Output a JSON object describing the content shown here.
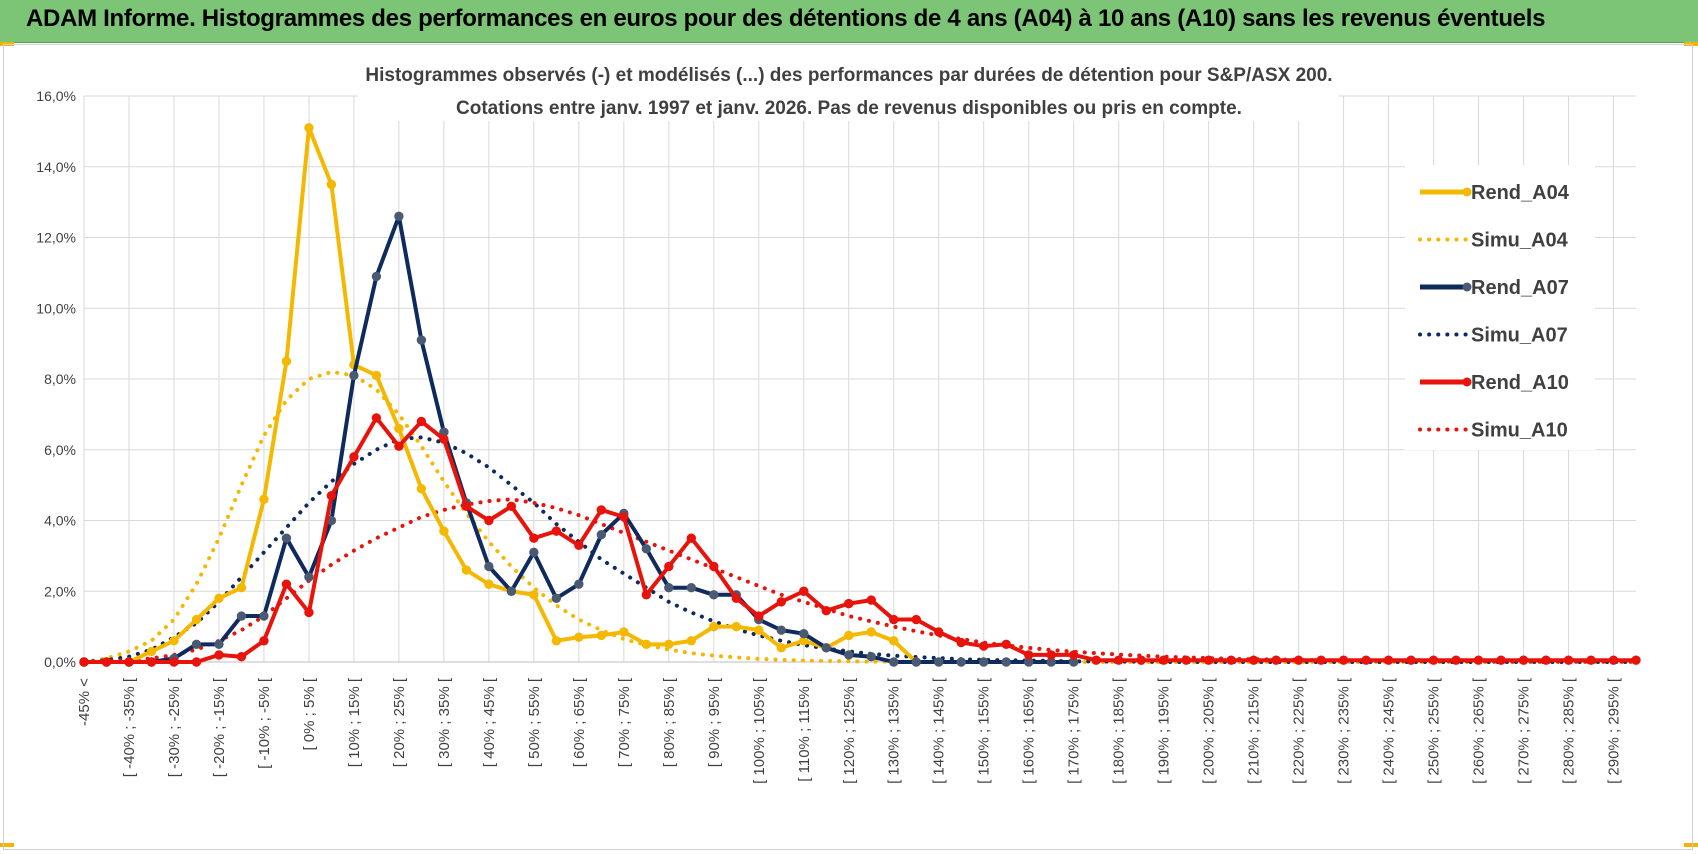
{
  "banner": {
    "title": "ADAM Informe. Histogrammes des performances en euros pour des détentions de 4 ans (A04) à 10 ans (A10) sans les revenus éventuels"
  },
  "colors": {
    "banner": "#7cc576",
    "a04": "#f5b800",
    "a07": "#0f2a5c",
    "a07_marker": "#4a5a72",
    "a10": "#e8130a",
    "grid": "#d9d9d9"
  },
  "chart_data": {
    "type": "line",
    "title": [
      "Histogrammes observés (-) et modélisés (...) des performances par durées de détention pour S&P/ASX 200.",
      "Cotations entre janv. 1997 et janv. 2026. Pas de revenus disponibles ou pris en compte."
    ],
    "xlabel": "",
    "ylabel": "",
    "ylim": [
      0,
      16
    ],
    "yticks": [
      "0,0%",
      "2,0%",
      "4,0%",
      "6,0%",
      "8,0%",
      "10,0%",
      "12,0%",
      "14,0%",
      "16,0%"
    ],
    "legend_position": "right",
    "categories": [
      "-45% <",
      "[ -45% ; -40% [",
      "[ -40% ; -35% [",
      "[ -35% ; -30% [",
      "[ -30% ; -25% [",
      "[ -25% ; -20% [",
      "[ -20% ; -15% [",
      "[ -15% ; -10% [",
      "[ -10% ; -5% [",
      "[ -5% ; 0% [",
      "[ 0% ; 5% [",
      "[ 5% ; 10% [",
      "[ 10% ; 15% [",
      "[ 15% ; 20% [",
      "[ 20% ; 25% [",
      "[ 25% ; 30% [",
      "[ 30% ; 35% [",
      "[ 35% ; 40% [",
      "[ 40% ; 45% [",
      "[ 45% ; 50% [",
      "[ 50% ; 55% [",
      "[ 55% ; 60% [",
      "[ 60% ; 65% [",
      "[ 65% ; 70% [",
      "[ 70% ; 75% [",
      "[ 75% ; 80% [",
      "[ 80% ; 85% [",
      "[ 85% ; 90% [",
      "[ 90% ; 95% [",
      "[ 95% ; 100% [",
      "[ 100% ; 105% [",
      "[ 105% ; 110% [",
      "[ 110% ; 115% [",
      "[ 115% ; 120% [",
      "[ 120% ; 125% [",
      "[ 125% ; 130% [",
      "[ 130% ; 135% [",
      "[ 135% ; 140% [",
      "[ 140% ; 145% [",
      "[ 145% ; 150% [",
      "[ 150% ; 155% [",
      "[ 155% ; 160% [",
      "[ 160% ; 165% [",
      "[ 165% ; 170% [",
      "[ 170% ; 175% [",
      "[ 175% ; 180% [",
      "[ 180% ; 185% [",
      "[ 185% ; 190% [",
      "[ 190% ; 195% [",
      "[ 195% ; 200% [",
      "[ 200% ; 205% [",
      "[ 205% ; 210% [",
      "[ 210% ; 215% [",
      "[ 215% ; 220% [",
      "[ 220% ; 225% [",
      "[ 225% ; 230% [",
      "[ 230% ; 235% [",
      "[ 235% ; 240% [",
      "[ 240% ; 245% [",
      "[ 245% ; 250% [",
      "[ 250% ; 255% [",
      "[ 255% ; 260% [",
      "[ 260% ; 265% [",
      "[ 265% ; 270% [",
      "[ 270% ; 275% [",
      "[ 275% ; 280% [",
      "[ 280% ; 285% [",
      "[ 285% ; 290% [",
      "[ 290% ; 295% [",
      "[ 295% ; 300% ["
    ],
    "visible_tick_labels": [
      "-45% <",
      "[ -40% ; -35% [",
      "[ -30% ; -25% [",
      "[ -20% ; -15% [",
      "[ -10% ; -5% [",
      "[ 0% ; 5% [",
      "[ 10% ; 15% [",
      "[ 20% ; 25% [",
      "[ 30% ; 35% [",
      "[ 40% ; 45% [",
      "[ 50% ; 55% [",
      "[ 60% ; 65% [",
      "[ 70% ; 75% [",
      "[ 80% ; 85% [",
      "[ 90% ; 95% [",
      "[ 100% ; 105% [",
      "[ 110% ; 115% [",
      "[ 120% ; 125% [",
      "[ 130% ; 135% [",
      "[ 140% ; 145% [",
      "[ 150% ; 155% [",
      "[ 160% ; 165% [",
      "[ 170% ; 175% [",
      "[ 180% ; 185% [",
      "[ 190% ; 195% [",
      "[ 200% ; 205% [",
      "[ 210% ; 215% [",
      "[ 220% ; 225% [",
      "[ 230% ; 235% [",
      "[ 240% ; 245% [",
      "[ 250% ; 255% [",
      "[ 260% ; 265% [",
      "[ 270% ; 275% [",
      "[ 280% ; 285% [",
      "[ 290% ; 295% ["
    ],
    "series": [
      {
        "name": "Rend_A04",
        "style": "solid",
        "color": "#f5b800",
        "marker": "#f5b800",
        "values": [
          0,
          0,
          0,
          0.3,
          0.6,
          1.2,
          1.8,
          2.1,
          4.6,
          8.5,
          15.1,
          13.5,
          8.4,
          8.1,
          6.6,
          4.9,
          3.7,
          2.6,
          2.2,
          2.0,
          1.9,
          0.6,
          0.7,
          0.75,
          0.85,
          0.5,
          0.5,
          0.6,
          1.0,
          1.0,
          0.9,
          0.4,
          0.6,
          0.4,
          0.75,
          0.85,
          0.6,
          0.0,
          null,
          null,
          null,
          null,
          null,
          null,
          null,
          null,
          null,
          null,
          null,
          null,
          null,
          null,
          null,
          null,
          null,
          null,
          null,
          null,
          null,
          null,
          null,
          null,
          null,
          null,
          null,
          null,
          null,
          null,
          null,
          null
        ]
      },
      {
        "name": "Simu_A04",
        "style": "dotted",
        "color": "#f5b800",
        "values": [
          0.0,
          0.1,
          0.3,
          0.6,
          1.2,
          2.2,
          3.5,
          5.0,
          6.4,
          7.4,
          8.0,
          8.2,
          8.1,
          7.7,
          7.0,
          6.1,
          5.1,
          4.2,
          3.4,
          2.7,
          2.1,
          1.6,
          1.2,
          0.9,
          0.65,
          0.48,
          0.35,
          0.25,
          0.18,
          0.13,
          0.09,
          0.06,
          0.04,
          0.03,
          0.02,
          0.01,
          0.01,
          0.0,
          0.0,
          0.0,
          0.0,
          0.0,
          0.0,
          0.0,
          0.0,
          0.0,
          0.0,
          0.0,
          0.0,
          0.0,
          0.0,
          0.0,
          0.0,
          0.0,
          0.0,
          0.0,
          0.0,
          0.0,
          0.0,
          0.0,
          0.0,
          0.0,
          0.0,
          0.0,
          0.0,
          0.0,
          0.0,
          0.0,
          0.0,
          0.0
        ]
      },
      {
        "name": "Rend_A07",
        "style": "solid",
        "color": "#0f2a5c",
        "marker": "#4a5a72",
        "values": [
          0,
          0,
          0,
          0,
          0.1,
          0.5,
          0.5,
          1.3,
          1.3,
          3.5,
          2.4,
          4.0,
          8.1,
          10.9,
          12.6,
          9.1,
          6.5,
          4.5,
          2.7,
          2.0,
          3.1,
          1.8,
          2.2,
          3.6,
          4.2,
          3.2,
          2.1,
          2.1,
          1.9,
          1.9,
          1.2,
          0.9,
          0.8,
          0.4,
          0.2,
          0.15,
          0.0,
          0.0,
          0.0,
          0.0,
          0.0,
          0.0,
          0.0,
          0.0,
          0.0,
          null,
          null,
          null,
          null,
          null,
          null,
          null,
          null,
          null,
          null,
          null,
          null,
          null,
          null,
          null,
          null,
          null,
          null,
          null,
          null,
          null,
          null,
          null,
          null,
          null
        ]
      },
      {
        "name": "Simu_A07",
        "style": "dotted",
        "color": "#0f2a5c",
        "values": [
          0.0,
          0.05,
          0.15,
          0.35,
          0.7,
          1.1,
          1.7,
          2.4,
          3.1,
          3.8,
          4.5,
          5.1,
          5.6,
          6.0,
          6.3,
          6.35,
          6.2,
          5.9,
          5.5,
          5.0,
          4.5,
          3.9,
          3.4,
          2.9,
          2.5,
          2.1,
          1.7,
          1.4,
          1.15,
          0.93,
          0.75,
          0.6,
          0.48,
          0.38,
          0.3,
          0.23,
          0.18,
          0.14,
          0.11,
          0.08,
          0.06,
          0.05,
          0.04,
          0.03,
          0.02,
          0.015,
          0.01,
          0.01,
          0.0,
          0.0,
          0.0,
          0.0,
          0.0,
          0.0,
          0.0,
          0.0,
          0.0,
          0.0,
          0.0,
          0.0,
          0.0,
          0.0,
          0.0,
          0.0,
          0.0,
          0.0,
          0.0,
          0.0,
          0.0,
          0.0
        ]
      },
      {
        "name": "Rend_A10",
        "style": "solid",
        "color": "#e8130a",
        "marker": "#e8130a",
        "values": [
          0,
          0,
          0,
          0,
          0,
          0,
          0.2,
          0.15,
          0.6,
          2.2,
          1.4,
          4.7,
          5.8,
          6.9,
          6.1,
          6.8,
          6.3,
          4.4,
          4.0,
          4.4,
          3.5,
          3.7,
          3.3,
          4.3,
          4.1,
          1.9,
          2.7,
          3.5,
          2.7,
          1.8,
          1.3,
          1.7,
          2.0,
          1.45,
          1.65,
          1.75,
          1.2,
          1.2,
          0.85,
          0.55,
          0.45,
          0.5,
          0.2,
          0.2,
          0.2,
          0.05,
          0.05,
          0.05,
          0.05,
          0.05,
          0.05,
          0.05,
          0.05,
          0.05,
          0.05,
          0.05,
          0.05,
          0.05,
          0.05,
          0.05,
          0.05,
          0.05,
          0.05,
          0.05,
          0.05,
          0.05,
          0.05,
          0.05,
          0.05,
          0.05
        ]
      },
      {
        "name": "Simu_A10",
        "style": "dotted",
        "color": "#e8130a",
        "values": [
          0.0,
          0.02,
          0.05,
          0.1,
          0.2,
          0.35,
          0.6,
          0.9,
          1.3,
          1.8,
          2.3,
          2.75,
          3.15,
          3.5,
          3.8,
          4.1,
          4.3,
          4.45,
          4.55,
          4.6,
          4.5,
          4.35,
          4.15,
          3.9,
          3.65,
          3.4,
          3.15,
          2.9,
          2.65,
          2.4,
          2.15,
          1.9,
          1.7,
          1.5,
          1.3,
          1.15,
          1.0,
          0.87,
          0.75,
          0.65,
          0.55,
          0.47,
          0.4,
          0.34,
          0.29,
          0.25,
          0.21,
          0.18,
          0.15,
          0.13,
          0.11,
          0.09,
          0.08,
          0.07,
          0.06,
          0.05,
          0.04,
          0.04,
          0.03,
          0.03,
          0.02,
          0.02,
          0.02,
          0.01,
          0.01,
          0.01,
          0.01,
          0.01,
          0.01,
          0.01
        ]
      }
    ]
  }
}
